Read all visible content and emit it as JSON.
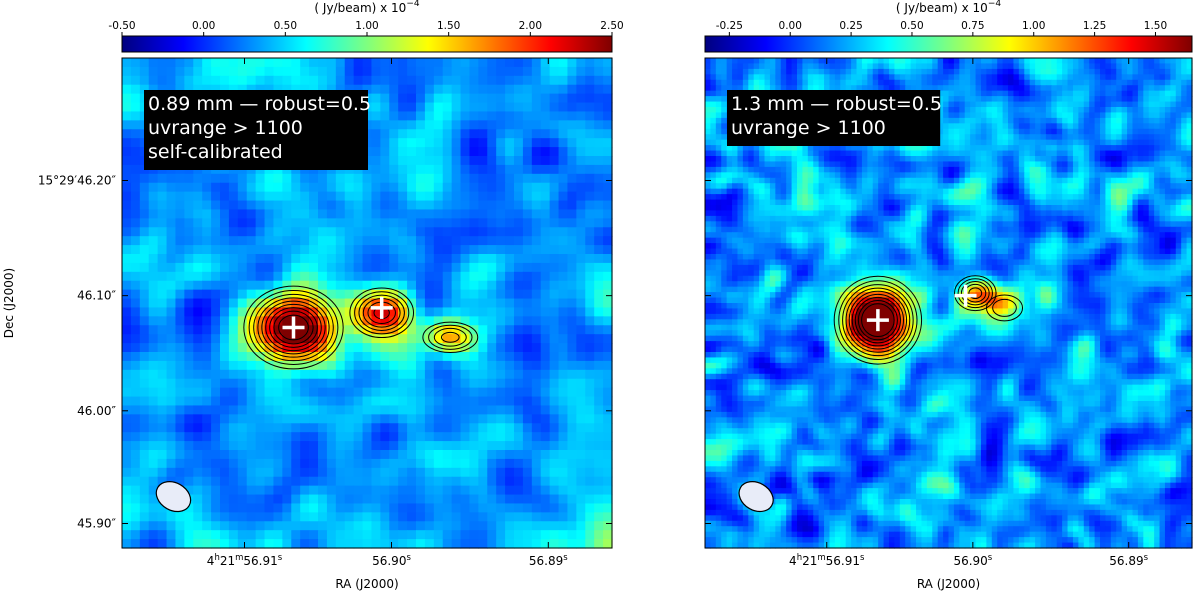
{
  "colormap": [
    "#00007f",
    "#0000ff",
    "#007fff",
    "#00ffff",
    "#7fff7f",
    "#ffff00",
    "#ff7f00",
    "#ff0000",
    "#7f0000"
  ],
  "contour_color": "#000000",
  "marker_color": "#ffffff",
  "beam_fill": "#e8ecf8",
  "chart_data": [
    {
      "type": "heatmap",
      "title": "",
      "annotation_lines": [
        "0.89 mm — robust=0.5",
        "uvrange > 1100",
        "self-calibrated"
      ],
      "colorbar": {
        "label": "( Jy/beam) x 10",
        "label_exponent": "−4",
        "range": [
          -0.5,
          2.5
        ],
        "ticks": [
          -0.5,
          0.0,
          0.5,
          1.0,
          1.5,
          2.0,
          2.5
        ],
        "tick_labels": [
          "-0.50",
          "0.00",
          "0.50",
          "1.00",
          "1.50",
          "2.00",
          "2.50"
        ]
      },
      "xlabel": "RA (J2000)",
      "ylabel": "Dec (J2000)",
      "x_ticks": [
        {
          "pos": 0.25,
          "prefix": "4",
          "h": "h",
          "min": "21",
          "m": "m",
          "sec": "56.91",
          "s": "s"
        },
        {
          "pos": 0.55,
          "prefix": "",
          "h": "",
          "min": "",
          "m": "",
          "sec": "56.90",
          "s": "s"
        },
        {
          "pos": 0.87,
          "prefix": "",
          "h": "",
          "min": "",
          "m": "",
          "sec": "56.89",
          "s": "s"
        }
      ],
      "y_ticks": [
        {
          "pos": 0.25,
          "label": "15°29′46.20″"
        },
        {
          "pos": 0.485,
          "label": "46.10″"
        },
        {
          "pos": 0.72,
          "label": "46.00″"
        },
        {
          "pos": 0.95,
          "label": "45.90″"
        }
      ],
      "show_y_labels": true,
      "grid_cols": 55,
      "grid_rows": 55,
      "sources": [
        {
          "x": 0.35,
          "y": 0.55,
          "peak": 2.5,
          "sx": 0.06,
          "sy": 0.05
        },
        {
          "x": 0.53,
          "y": 0.52,
          "peak": 1.7,
          "sx": 0.045,
          "sy": 0.035
        },
        {
          "x": 0.67,
          "y": 0.57,
          "peak": 1.3,
          "sx": 0.045,
          "sy": 0.025
        }
      ],
      "contour_levels": [
        0.6,
        0.8,
        1.0,
        1.2,
        1.4,
        1.6,
        1.8,
        2.0,
        2.2
      ],
      "markers": [
        {
          "x": 0.35,
          "y": 0.55
        },
        {
          "x": 0.53,
          "y": 0.51
        }
      ],
      "beam": {
        "x": 0.105,
        "y": 0.895,
        "rx": 0.037,
        "ry": 0.028,
        "angle": 30
      },
      "noise_seed": 7,
      "noise_amp": 0.55,
      "noise_offset": 0.35
    },
    {
      "type": "heatmap",
      "title": "",
      "annotation_lines": [
        "1.3 mm — robust=0.5",
        "uvrange > 1100"
      ],
      "colorbar": {
        "label": "( Jy/beam) x 10",
        "label_exponent": "−4",
        "range": [
          -0.35,
          1.65
        ],
        "ticks": [
          -0.25,
          0.0,
          0.25,
          0.5,
          0.75,
          1.0,
          1.25,
          1.5
        ],
        "tick_labels": [
          "-0.25",
          "0.00",
          "0.25",
          "0.50",
          "0.75",
          "1.00",
          "1.25",
          "1.50"
        ]
      },
      "xlabel": "RA (J2000)",
      "ylabel": "",
      "x_ticks": [
        {
          "pos": 0.25,
          "prefix": "4",
          "h": "h",
          "min": "21",
          "m": "m",
          "sec": "56.91",
          "s": "s"
        },
        {
          "pos": 0.55,
          "prefix": "",
          "h": "",
          "min": "",
          "m": "",
          "sec": "56.90",
          "s": "s"
        },
        {
          "pos": 0.87,
          "prefix": "",
          "h": "",
          "min": "",
          "m": "",
          "sec": "56.89",
          "s": "s"
        }
      ],
      "y_ticks": [
        {
          "pos": 0.25,
          "label": ""
        },
        {
          "pos": 0.485,
          "label": ""
        },
        {
          "pos": 0.72,
          "label": ""
        },
        {
          "pos": 0.95,
          "label": ""
        }
      ],
      "show_y_labels": false,
      "grid_cols": 90,
      "grid_rows": 90,
      "sources": [
        {
          "x": 0.355,
          "y": 0.535,
          "peak": 2.0,
          "sx": 0.05,
          "sy": 0.05
        },
        {
          "x": 0.555,
          "y": 0.48,
          "peak": 1.1,
          "sx": 0.03,
          "sy": 0.025
        },
        {
          "x": 0.615,
          "y": 0.51,
          "peak": 0.7,
          "sx": 0.035,
          "sy": 0.025
        }
      ],
      "contour_levels": [
        0.4,
        0.55,
        0.7,
        0.85,
        1.0,
        1.15,
        1.3,
        1.45,
        1.6
      ],
      "markers": [
        {
          "x": 0.355,
          "y": 0.535
        },
        {
          "x": 0.535,
          "y": 0.485
        }
      ],
      "beam": {
        "x": 0.105,
        "y": 0.895,
        "rx": 0.037,
        "ry": 0.028,
        "angle": 30
      },
      "noise_seed": 19,
      "noise_amp": 0.5,
      "noise_offset": 0.2
    }
  ]
}
